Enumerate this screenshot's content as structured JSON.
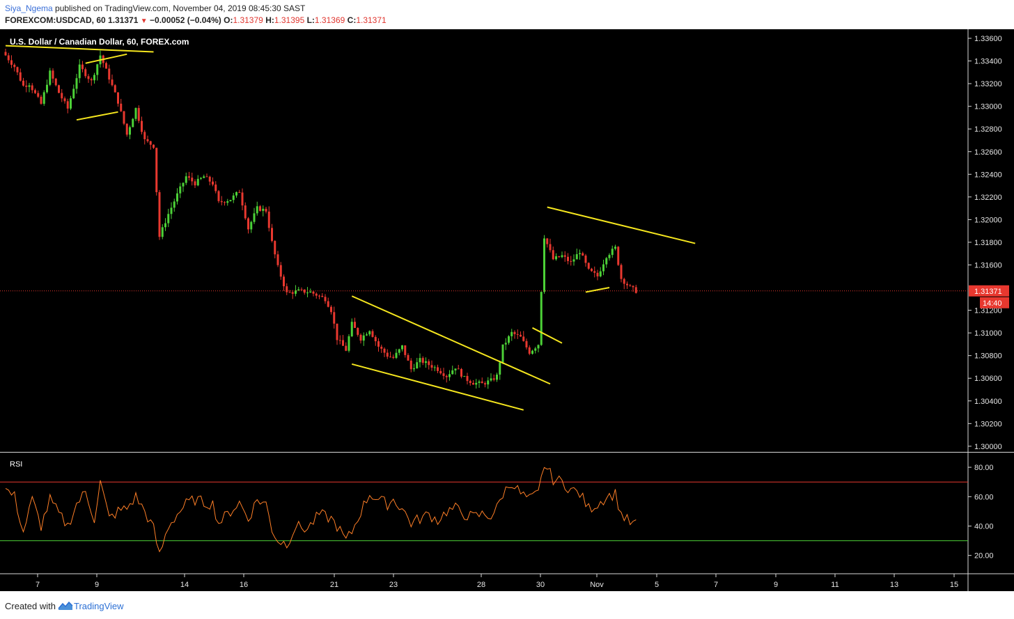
{
  "header": {
    "author": "Siya_Ngema",
    "published": " published on TradingView.com, November 04, 2019 08:45:30 SAST",
    "symbol_line": "FOREXCOM:USDCAD, 60",
    "last": "1.31371",
    "down_arrow": "▼",
    "change": "−0.00052 (−0.04%)",
    "o_label": "O:",
    "o_value": "1.31379",
    "h_label": "H:",
    "h_value": "1.31395",
    "l_label": "L:",
    "l_value": "1.31369",
    "c_label": "C:",
    "c_value": "1.31371"
  },
  "chart_data": [
    {
      "type": "candlestick",
      "title": "U.S. Dollar / Canadian Dollar, 60, FOREX.com",
      "x_tick_labels": [
        "7",
        "9",
        "14",
        "16",
        "21",
        "23",
        "28",
        "30",
        "Nov",
        "5",
        "7",
        "9",
        "11",
        "13",
        "15"
      ],
      "y_tick_labels": [
        "1.33600",
        "1.33400",
        "1.33200",
        "1.33000",
        "1.32800",
        "1.32600",
        "1.32400",
        "1.32200",
        "1.32000",
        "1.31800",
        "1.31600",
        "1.31200",
        "1.31000",
        "1.30800",
        "1.30600",
        "1.30400",
        "1.30200",
        "1.30000"
      ],
      "ylim": [
        1.2995,
        1.3368
      ],
      "last_price_label": "1.31371",
      "last_price": 1.31371,
      "countdown_label": "14:40",
      "up_color": "#4cd137",
      "down_color": "#e8382f",
      "trendline_color": "#f5e61e",
      "anchors": [
        [
          0,
          1.3345
        ],
        [
          3,
          1.3335
        ],
        [
          6,
          1.3318
        ],
        [
          8,
          1.332
        ],
        [
          12,
          1.3302
        ],
        [
          15,
          1.333
        ],
        [
          18,
          1.3312
        ],
        [
          21,
          1.3298
        ],
        [
          25,
          1.3335
        ],
        [
          29,
          1.3322
        ],
        [
          32,
          1.3345
        ],
        [
          35,
          1.3325
        ],
        [
          38,
          1.3304
        ],
        [
          41,
          1.3275
        ],
        [
          44,
          1.3298
        ],
        [
          47,
          1.327
        ],
        [
          50,
          1.3265
        ],
        [
          52,
          1.3185
        ],
        [
          55,
          1.3205
        ],
        [
          58,
          1.3222
        ],
        [
          61,
          1.3238
        ],
        [
          64,
          1.3232
        ],
        [
          67,
          1.3238
        ],
        [
          70,
          1.3232
        ],
        [
          72,
          1.3215
        ],
        [
          76,
          1.3218
        ],
        [
          79,
          1.3225
        ],
        [
          82,
          1.3192
        ],
        [
          85,
          1.321
        ],
        [
          88,
          1.3208
        ],
        [
          90,
          1.318
        ],
        [
          92,
          1.3158
        ],
        [
          95,
          1.3135
        ],
        [
          99,
          1.3137
        ],
        [
          103,
          1.3136
        ],
        [
          108,
          1.313
        ],
        [
          110,
          1.312
        ],
        [
          112,
          1.3095
        ],
        [
          115,
          1.3085
        ],
        [
          117,
          1.3108
        ],
        [
          120,
          1.3095
        ],
        [
          123,
          1.3103
        ],
        [
          126,
          1.3088
        ],
        [
          129,
          1.308
        ],
        [
          131,
          1.3078
        ],
        [
          134,
          1.3088
        ],
        [
          137,
          1.3068
        ],
        [
          140,
          1.3076
        ],
        [
          143,
          1.3072
        ],
        [
          146,
          1.3068
        ],
        [
          149,
          1.3062
        ],
        [
          152,
          1.307
        ],
        [
          155,
          1.306
        ],
        [
          158,
          1.3056
        ],
        [
          161,
          1.3055
        ],
        [
          164,
          1.3058
        ],
        [
          166,
          1.3062
        ],
        [
          168,
          1.3088
        ],
        [
          171,
          1.31
        ],
        [
          174,
          1.3096
        ],
        [
          177,
          1.3083
        ],
        [
          180,
          1.309
        ],
        [
          182,
          1.3185
        ],
        [
          185,
          1.3165
        ],
        [
          188,
          1.3168
        ],
        [
          191,
          1.3162
        ],
        [
          194,
          1.3172
        ],
        [
          197,
          1.3155
        ],
        [
          200,
          1.315
        ],
        [
          203,
          1.3168
        ],
        [
          206,
          1.3175
        ],
        [
          208,
          1.3148
        ],
        [
          211,
          1.314
        ],
        [
          213,
          1.3137
        ]
      ],
      "trendlines": [
        {
          "from": [
            0,
            1.33535
          ],
          "to": [
            50,
            1.3348
          ]
        },
        {
          "from": [
            27,
            1.3338
          ],
          "to": [
            41,
            1.3346
          ]
        },
        {
          "from": [
            24,
            1.3288
          ],
          "to": [
            38,
            1.3295
          ]
        },
        {
          "from": [
            117,
            1.31325
          ],
          "to": [
            184,
            1.3055
          ]
        },
        {
          "from": [
            117,
            1.30725
          ],
          "to": [
            175,
            1.3032
          ]
        },
        {
          "from": [
            178,
            1.31045
          ],
          "to": [
            188,
            1.3091
          ]
        },
        {
          "from": [
            183,
            1.3211
          ],
          "to": [
            233,
            1.3179
          ]
        },
        {
          "from": [
            196,
            1.3136
          ],
          "to": [
            204,
            1.314
          ]
        }
      ]
    },
    {
      "type": "line",
      "title": "RSI",
      "y_tick_labels": [
        "80.00",
        "60.00",
        "40.00",
        "20.00"
      ],
      "ylim": [
        8,
        90
      ],
      "upper_band": 70,
      "lower_band": 30,
      "upper_color": "#e8382f",
      "lower_color": "#4cd137",
      "line_color": "#ff7f27",
      "anchors": [
        [
          0,
          65
        ],
        [
          3,
          60
        ],
        [
          6,
          36
        ],
        [
          9,
          58
        ],
        [
          12,
          40
        ],
        [
          15,
          58
        ],
        [
          18,
          48
        ],
        [
          21,
          40
        ],
        [
          24,
          55
        ],
        [
          27,
          63
        ],
        [
          30,
          45
        ],
        [
          32,
          70
        ],
        [
          35,
          45
        ],
        [
          38,
          50
        ],
        [
          41,
          52
        ],
        [
          44,
          60
        ],
        [
          47,
          50
        ],
        [
          50,
          38
        ],
        [
          52,
          20
        ],
        [
          55,
          40
        ],
        [
          58,
          48
        ],
        [
          61,
          55
        ],
        [
          64,
          58
        ],
        [
          67,
          56
        ],
        [
          70,
          55
        ],
        [
          72,
          42
        ],
        [
          76,
          50
        ],
        [
          79,
          56
        ],
        [
          82,
          45
        ],
        [
          85,
          58
        ],
        [
          88,
          55
        ],
        [
          90,
          38
        ],
        [
          92,
          30
        ],
        [
          95,
          28
        ],
        [
          98,
          40
        ],
        [
          102,
          38
        ],
        [
          106,
          48
        ],
        [
          110,
          45
        ],
        [
          112,
          40
        ],
        [
          115,
          30
        ],
        [
          117,
          36
        ],
        [
          120,
          50
        ],
        [
          123,
          62
        ],
        [
          126,
          58
        ],
        [
          129,
          55
        ],
        [
          131,
          58
        ],
        [
          134,
          52
        ],
        [
          137,
          42
        ],
        [
          140,
          45
        ],
        [
          143,
          48
        ],
        [
          146,
          44
        ],
        [
          149,
          50
        ],
        [
          152,
          52
        ],
        [
          155,
          48
        ],
        [
          158,
          46
        ],
        [
          161,
          48
        ],
        [
          164,
          47
        ],
        [
          166,
          52
        ],
        [
          168,
          62
        ],
        [
          171,
          70
        ],
        [
          174,
          62
        ],
        [
          177,
          58
        ],
        [
          180,
          62
        ],
        [
          182,
          82
        ],
        [
          185,
          72
        ],
        [
          188,
          70
        ],
        [
          191,
          65
        ],
        [
          194,
          62
        ],
        [
          197,
          52
        ],
        [
          200,
          55
        ],
        [
          203,
          60
        ],
        [
          206,
          62
        ],
        [
          208,
          48
        ],
        [
          211,
          42
        ],
        [
          213,
          41
        ]
      ]
    }
  ],
  "footer": {
    "created_with": "Created with",
    "brand": "TradingView"
  }
}
